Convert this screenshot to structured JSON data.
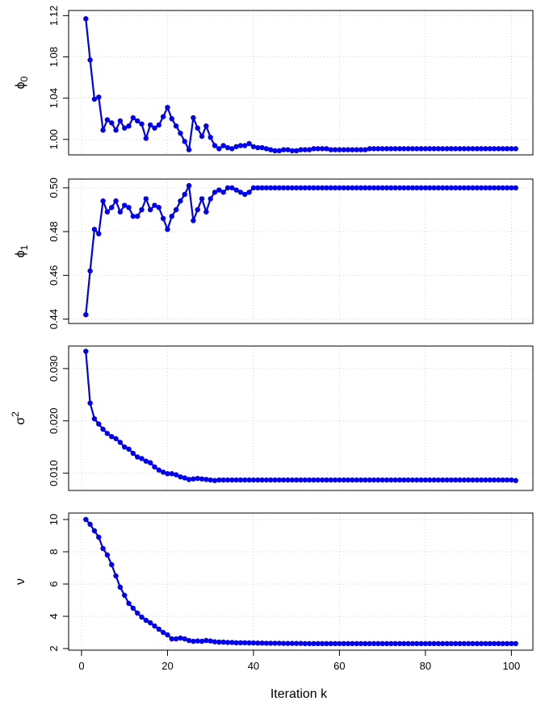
{
  "figure": {
    "xlabel": "Iteration k",
    "line_color": "#0000ee",
    "grid": true
  },
  "chart_data": [
    {
      "type": "line",
      "ylabel": "ϕ",
      "ylabel_sub": "0",
      "ylabel_sup": "",
      "xlim": [
        -3,
        105
      ],
      "ylim": [
        0.985,
        1.125
      ],
      "x": [
        1,
        2,
        3,
        4,
        5,
        6,
        7,
        8,
        9,
        10,
        11,
        12,
        13,
        14,
        15,
        16,
        17,
        18,
        19,
        20,
        21,
        22,
        23,
        24,
        25,
        26,
        27,
        28,
        29,
        30,
        31,
        32,
        33,
        34,
        35,
        36,
        37,
        38,
        39,
        40,
        41,
        42,
        43,
        44,
        45,
        46,
        47,
        48,
        49,
        50,
        51,
        52,
        53,
        54,
        55,
        56,
        57,
        58,
        59,
        60,
        61,
        62,
        63,
        64,
        65,
        66,
        67,
        68,
        69,
        70,
        71,
        72,
        73,
        74,
        75,
        76,
        77,
        78,
        79,
        80,
        81,
        82,
        83,
        84,
        85,
        86,
        87,
        88,
        89,
        90,
        91,
        92,
        93,
        94,
        95,
        96,
        97,
        98,
        99,
        100,
        101
      ],
      "values": [
        1.117,
        1.077,
        1.039,
        1.041,
        1.009,
        1.019,
        1.016,
        1.009,
        1.018,
        1.011,
        1.013,
        1.021,
        1.018,
        1.015,
        1.001,
        1.014,
        1.011,
        1.014,
        1.022,
        1.031,
        1.02,
        1.013,
        1.006,
        0.998,
        0.99,
        1.021,
        1.011,
        1.003,
        1.013,
        1.002,
        0.994,
        0.991,
        0.994,
        0.992,
        0.991,
        0.993,
        0.994,
        0.994,
        0.996,
        0.993,
        0.992,
        0.992,
        0.991,
        0.99,
        0.989,
        0.989,
        0.99,
        0.99,
        0.989,
        0.989,
        0.99,
        0.99,
        0.99,
        0.991,
        0.991,
        0.991,
        0.991,
        0.99,
        0.99,
        0.99,
        0.99,
        0.99,
        0.99,
        0.99,
        0.99,
        0.99,
        0.991,
        0.991,
        0.991,
        0.991,
        0.991,
        0.991,
        0.991,
        0.991,
        0.991,
        0.991,
        0.991,
        0.991,
        0.991,
        0.991,
        0.991,
        0.991,
        0.991,
        0.991,
        0.991,
        0.991,
        0.991,
        0.991,
        0.991,
        0.991,
        0.991,
        0.991,
        0.991,
        0.991,
        0.991,
        0.991,
        0.991,
        0.991,
        0.991,
        0.991,
        0.991
      ],
      "y_ticks": [
        1.0,
        1.04,
        1.08,
        1.12
      ],
      "y_tick_labels": [
        "1.00",
        "1.04",
        "1.08",
        "1.12"
      ]
    },
    {
      "type": "line",
      "ylabel": "ϕ",
      "ylabel_sub": "1",
      "ylabel_sup": "",
      "xlim": [
        -3,
        105
      ],
      "ylim": [
        0.438,
        0.504
      ],
      "x": [
        1,
        2,
        3,
        4,
        5,
        6,
        7,
        8,
        9,
        10,
        11,
        12,
        13,
        14,
        15,
        16,
        17,
        18,
        19,
        20,
        21,
        22,
        23,
        24,
        25,
        26,
        27,
        28,
        29,
        30,
        31,
        32,
        33,
        34,
        35,
        36,
        37,
        38,
        39,
        40,
        41,
        42,
        43,
        44,
        45,
        46,
        47,
        48,
        49,
        50,
        51,
        52,
        53,
        54,
        55,
        56,
        57,
        58,
        59,
        60,
        61,
        62,
        63,
        64,
        65,
        66,
        67,
        68,
        69,
        70,
        71,
        72,
        73,
        74,
        75,
        76,
        77,
        78,
        79,
        80,
        81,
        82,
        83,
        84,
        85,
        86,
        87,
        88,
        89,
        90,
        91,
        92,
        93,
        94,
        95,
        96,
        97,
        98,
        99,
        100,
        101
      ],
      "values": [
        0.442,
        0.462,
        0.481,
        0.479,
        0.494,
        0.489,
        0.491,
        0.494,
        0.489,
        0.492,
        0.491,
        0.487,
        0.487,
        0.49,
        0.495,
        0.49,
        0.492,
        0.491,
        0.486,
        0.481,
        0.487,
        0.49,
        0.494,
        0.497,
        0.501,
        0.485,
        0.49,
        0.495,
        0.489,
        0.495,
        0.498,
        0.499,
        0.498,
        0.5,
        0.5,
        0.499,
        0.498,
        0.497,
        0.498,
        0.5,
        0.5,
        0.5,
        0.5,
        0.5,
        0.5,
        0.5,
        0.5,
        0.5,
        0.5,
        0.5,
        0.5,
        0.5,
        0.5,
        0.5,
        0.5,
        0.5,
        0.5,
        0.5,
        0.5,
        0.5,
        0.5,
        0.5,
        0.5,
        0.5,
        0.5,
        0.5,
        0.5,
        0.5,
        0.5,
        0.5,
        0.5,
        0.5,
        0.5,
        0.5,
        0.5,
        0.5,
        0.5,
        0.5,
        0.5,
        0.5,
        0.5,
        0.5,
        0.5,
        0.5,
        0.5,
        0.5,
        0.5,
        0.5,
        0.5,
        0.5,
        0.5,
        0.5,
        0.5,
        0.5,
        0.5,
        0.5,
        0.5,
        0.5,
        0.5,
        0.5,
        0.5
      ],
      "y_ticks": [
        0.44,
        0.46,
        0.48,
        0.5
      ],
      "y_tick_labels": [
        "0.44",
        "0.46",
        "0.48",
        "0.50"
      ]
    },
    {
      "type": "line",
      "ylabel": "σ",
      "ylabel_sub": "",
      "ylabel_sup": "2",
      "xlim": [
        -3,
        105
      ],
      "ylim": [
        0.0067,
        0.0343
      ],
      "x": [
        1,
        2,
        3,
        4,
        5,
        6,
        7,
        8,
        9,
        10,
        11,
        12,
        13,
        14,
        15,
        16,
        17,
        18,
        19,
        20,
        21,
        22,
        23,
        24,
        25,
        26,
        27,
        28,
        29,
        30,
        31,
        32,
        33,
        34,
        35,
        36,
        37,
        38,
        39,
        40,
        41,
        42,
        43,
        44,
        45,
        46,
        47,
        48,
        49,
        50,
        51,
        52,
        53,
        54,
        55,
        56,
        57,
        58,
        59,
        60,
        61,
        62,
        63,
        64,
        65,
        66,
        67,
        68,
        69,
        70,
        71,
        72,
        73,
        74,
        75,
        76,
        77,
        78,
        79,
        80,
        81,
        82,
        83,
        84,
        85,
        86,
        87,
        88,
        89,
        90,
        91,
        92,
        93,
        94,
        95,
        96,
        97,
        98,
        99,
        100,
        101
      ],
      "values": [
        0.0333,
        0.0234,
        0.0204,
        0.0194,
        0.0184,
        0.0176,
        0.017,
        0.0166,
        0.0159,
        0.015,
        0.0146,
        0.0138,
        0.0131,
        0.0128,
        0.0123,
        0.012,
        0.0112,
        0.0106,
        0.0102,
        0.0099,
        0.0099,
        0.0097,
        0.0093,
        0.0091,
        0.0088,
        0.0089,
        0.009,
        0.0089,
        0.0088,
        0.0087,
        0.0086,
        0.0087,
        0.0087,
        0.0087,
        0.0087,
        0.0087,
        0.0087,
        0.0087,
        0.0087,
        0.0087,
        0.0087,
        0.0087,
        0.0087,
        0.0087,
        0.0087,
        0.0087,
        0.0087,
        0.0087,
        0.0087,
        0.0087,
        0.0087,
        0.0087,
        0.0087,
        0.0087,
        0.0087,
        0.0087,
        0.0087,
        0.0087,
        0.0087,
        0.0087,
        0.0087,
        0.0087,
        0.0087,
        0.0087,
        0.0087,
        0.0087,
        0.0087,
        0.0087,
        0.0087,
        0.0087,
        0.0087,
        0.0087,
        0.0087,
        0.0087,
        0.0087,
        0.0087,
        0.0087,
        0.0087,
        0.0087,
        0.0087,
        0.0087,
        0.0087,
        0.0087,
        0.0087,
        0.0087,
        0.0087,
        0.0087,
        0.0087,
        0.0087,
        0.0087,
        0.0087,
        0.0087,
        0.0087,
        0.0087,
        0.0087,
        0.0087,
        0.0087,
        0.0087,
        0.0087,
        0.0087,
        0.0086
      ],
      "y_ticks": [
        0.01,
        0.02,
        0.03
      ],
      "y_tick_labels": [
        "0.010",
        "0.020",
        "0.030"
      ]
    },
    {
      "type": "line",
      "ylabel": "ν",
      "ylabel_sub": "",
      "ylabel_sup": "",
      "xlim": [
        -3,
        105
      ],
      "ylim": [
        1.9,
        10.4
      ],
      "x": [
        1,
        2,
        3,
        4,
        5,
        6,
        7,
        8,
        9,
        10,
        11,
        12,
        13,
        14,
        15,
        16,
        17,
        18,
        19,
        20,
        21,
        22,
        23,
        24,
        25,
        26,
        27,
        28,
        29,
        30,
        31,
        32,
        33,
        34,
        35,
        36,
        37,
        38,
        39,
        40,
        41,
        42,
        43,
        44,
        45,
        46,
        47,
        48,
        49,
        50,
        51,
        52,
        53,
        54,
        55,
        56,
        57,
        58,
        59,
        60,
        61,
        62,
        63,
        64,
        65,
        66,
        67,
        68,
        69,
        70,
        71,
        72,
        73,
        74,
        75,
        76,
        77,
        78,
        79,
        80,
        81,
        82,
        83,
        84,
        85,
        86,
        87,
        88,
        89,
        90,
        91,
        92,
        93,
        94,
        95,
        96,
        97,
        98,
        99,
        100,
        101
      ],
      "values": [
        10.0,
        9.7,
        9.3,
        8.9,
        8.2,
        7.8,
        7.2,
        6.5,
        5.8,
        5.3,
        4.8,
        4.5,
        4.2,
        3.95,
        3.75,
        3.6,
        3.4,
        3.2,
        3.0,
        2.85,
        2.6,
        2.6,
        2.65,
        2.6,
        2.5,
        2.45,
        2.47,
        2.45,
        2.5,
        2.47,
        2.42,
        2.4,
        2.4,
        2.38,
        2.38,
        2.36,
        2.36,
        2.36,
        2.35,
        2.35,
        2.34,
        2.34,
        2.33,
        2.33,
        2.33,
        2.33,
        2.32,
        2.32,
        2.32,
        2.32,
        2.32,
        2.31,
        2.31,
        2.31,
        2.31,
        2.31,
        2.31,
        2.31,
        2.31,
        2.31,
        2.31,
        2.31,
        2.31,
        2.31,
        2.31,
        2.31,
        2.31,
        2.31,
        2.31,
        2.31,
        2.31,
        2.31,
        2.31,
        2.31,
        2.31,
        2.31,
        2.31,
        2.31,
        2.31,
        2.31,
        2.31,
        2.31,
        2.31,
        2.31,
        2.31,
        2.31,
        2.31,
        2.31,
        2.31,
        2.31,
        2.31,
        2.31,
        2.31,
        2.31,
        2.31,
        2.31,
        2.31,
        2.31,
        2.31,
        2.31,
        2.31
      ],
      "y_ticks": [
        2,
        4,
        6,
        8,
        10
      ],
      "y_tick_labels": [
        "2",
        "4",
        "6",
        "8",
        "10"
      ],
      "x_ticks": [
        0,
        20,
        40,
        60,
        80,
        100
      ],
      "x_tick_labels": [
        "0",
        "20",
        "40",
        "60",
        "80",
        "100"
      ]
    }
  ]
}
